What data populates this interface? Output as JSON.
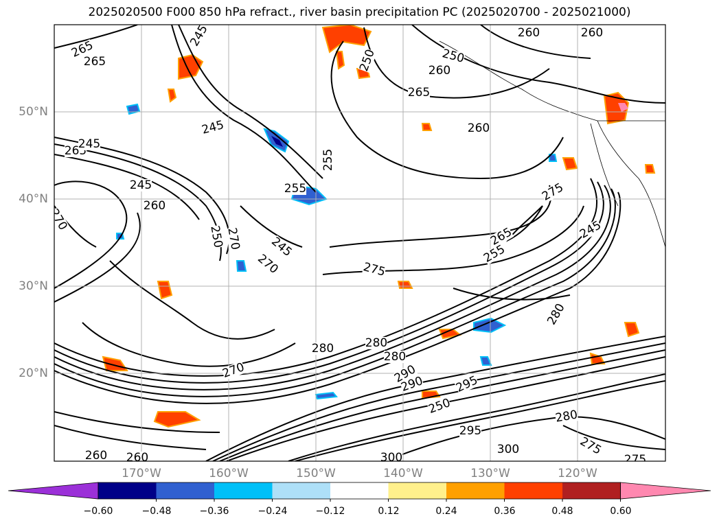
{
  "title": "2025020500 F000 850 hPa refract., river basin precipitation PC (2025020700 - 2025021000)",
  "lat_labels": [
    "50°N",
    "40°N",
    "30°N",
    "20°N"
  ],
  "lon_labels": [
    "170°W",
    "160°W",
    "150°W",
    "140°W",
    "130°W",
    "120°W"
  ],
  "contour_labels": [
    "265",
    "265",
    "245",
    "250",
    "260",
    "260",
    "260",
    "250",
    "265",
    "260",
    "245",
    "255",
    "245",
    "250",
    "245",
    "265",
    "255",
    "260",
    "275",
    "270",
    "270",
    "270",
    "245",
    "255",
    "265",
    "245",
    "280",
    "275",
    "280",
    "280",
    "280",
    "290",
    "295",
    "280",
    "300",
    "295",
    "300",
    "275",
    "275",
    "260",
    "260",
    "250",
    "290",
    "270"
  ],
  "colorbar": {
    "tick_labels": [
      "−0.60",
      "−0.48",
      "−0.36",
      "−0.24",
      "−0.12",
      "0.12",
      "0.24",
      "0.36",
      "0.48",
      "0.60"
    ],
    "colors": [
      "#9b30d8",
      "#000088",
      "#3060d0",
      "#00c0f8",
      "#aee0f8",
      "#ffffff",
      "#fff08c",
      "#ffa000",
      "#ff4000",
      "#b02020",
      "#ff88b0"
    ]
  },
  "colors": {
    "axis_text": "#808080",
    "contour": "#000000",
    "grid": "#b0b0b0"
  }
}
